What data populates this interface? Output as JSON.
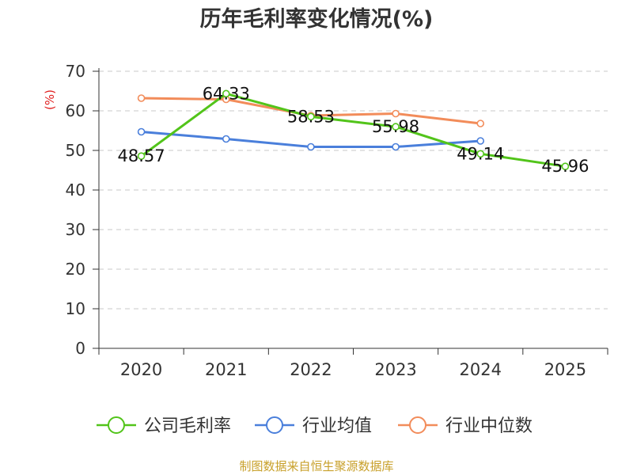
{
  "chart_data": {
    "type": "line",
    "title": "历年毛利率变化情况(%)",
    "ylabel": "(%)",
    "xlabel": "",
    "ylim": [
      0,
      70
    ],
    "yticks": [
      0,
      10,
      20,
      30,
      40,
      50,
      60,
      70
    ],
    "categories": [
      "2020",
      "2021",
      "2022",
      "2023",
      "2024",
      "2025"
    ],
    "grid": true,
    "legend_position": "bottom",
    "series": [
      {
        "name": "公司毛利率",
        "color": "#52c41a",
        "values": [
          48.57,
          64.33,
          58.53,
          55.98,
          49.14,
          45.96
        ],
        "labels": [
          "48.57",
          "64.33",
          "58.53",
          "55.98",
          "49.14",
          "45.96"
        ]
      },
      {
        "name": "行业均值",
        "color": "#4a7fdb",
        "values": [
          54.7,
          52.9,
          50.9,
          50.9,
          52.4,
          null
        ]
      },
      {
        "name": "行业中位数",
        "color": "#f28c5a",
        "values": [
          63.2,
          62.9,
          58.8,
          59.3,
          56.8,
          null
        ]
      }
    ],
    "source": "制图数据来自恒生聚源数据库",
    "ylabel_color": "#e02020",
    "source_color": "#c8a02a"
  }
}
